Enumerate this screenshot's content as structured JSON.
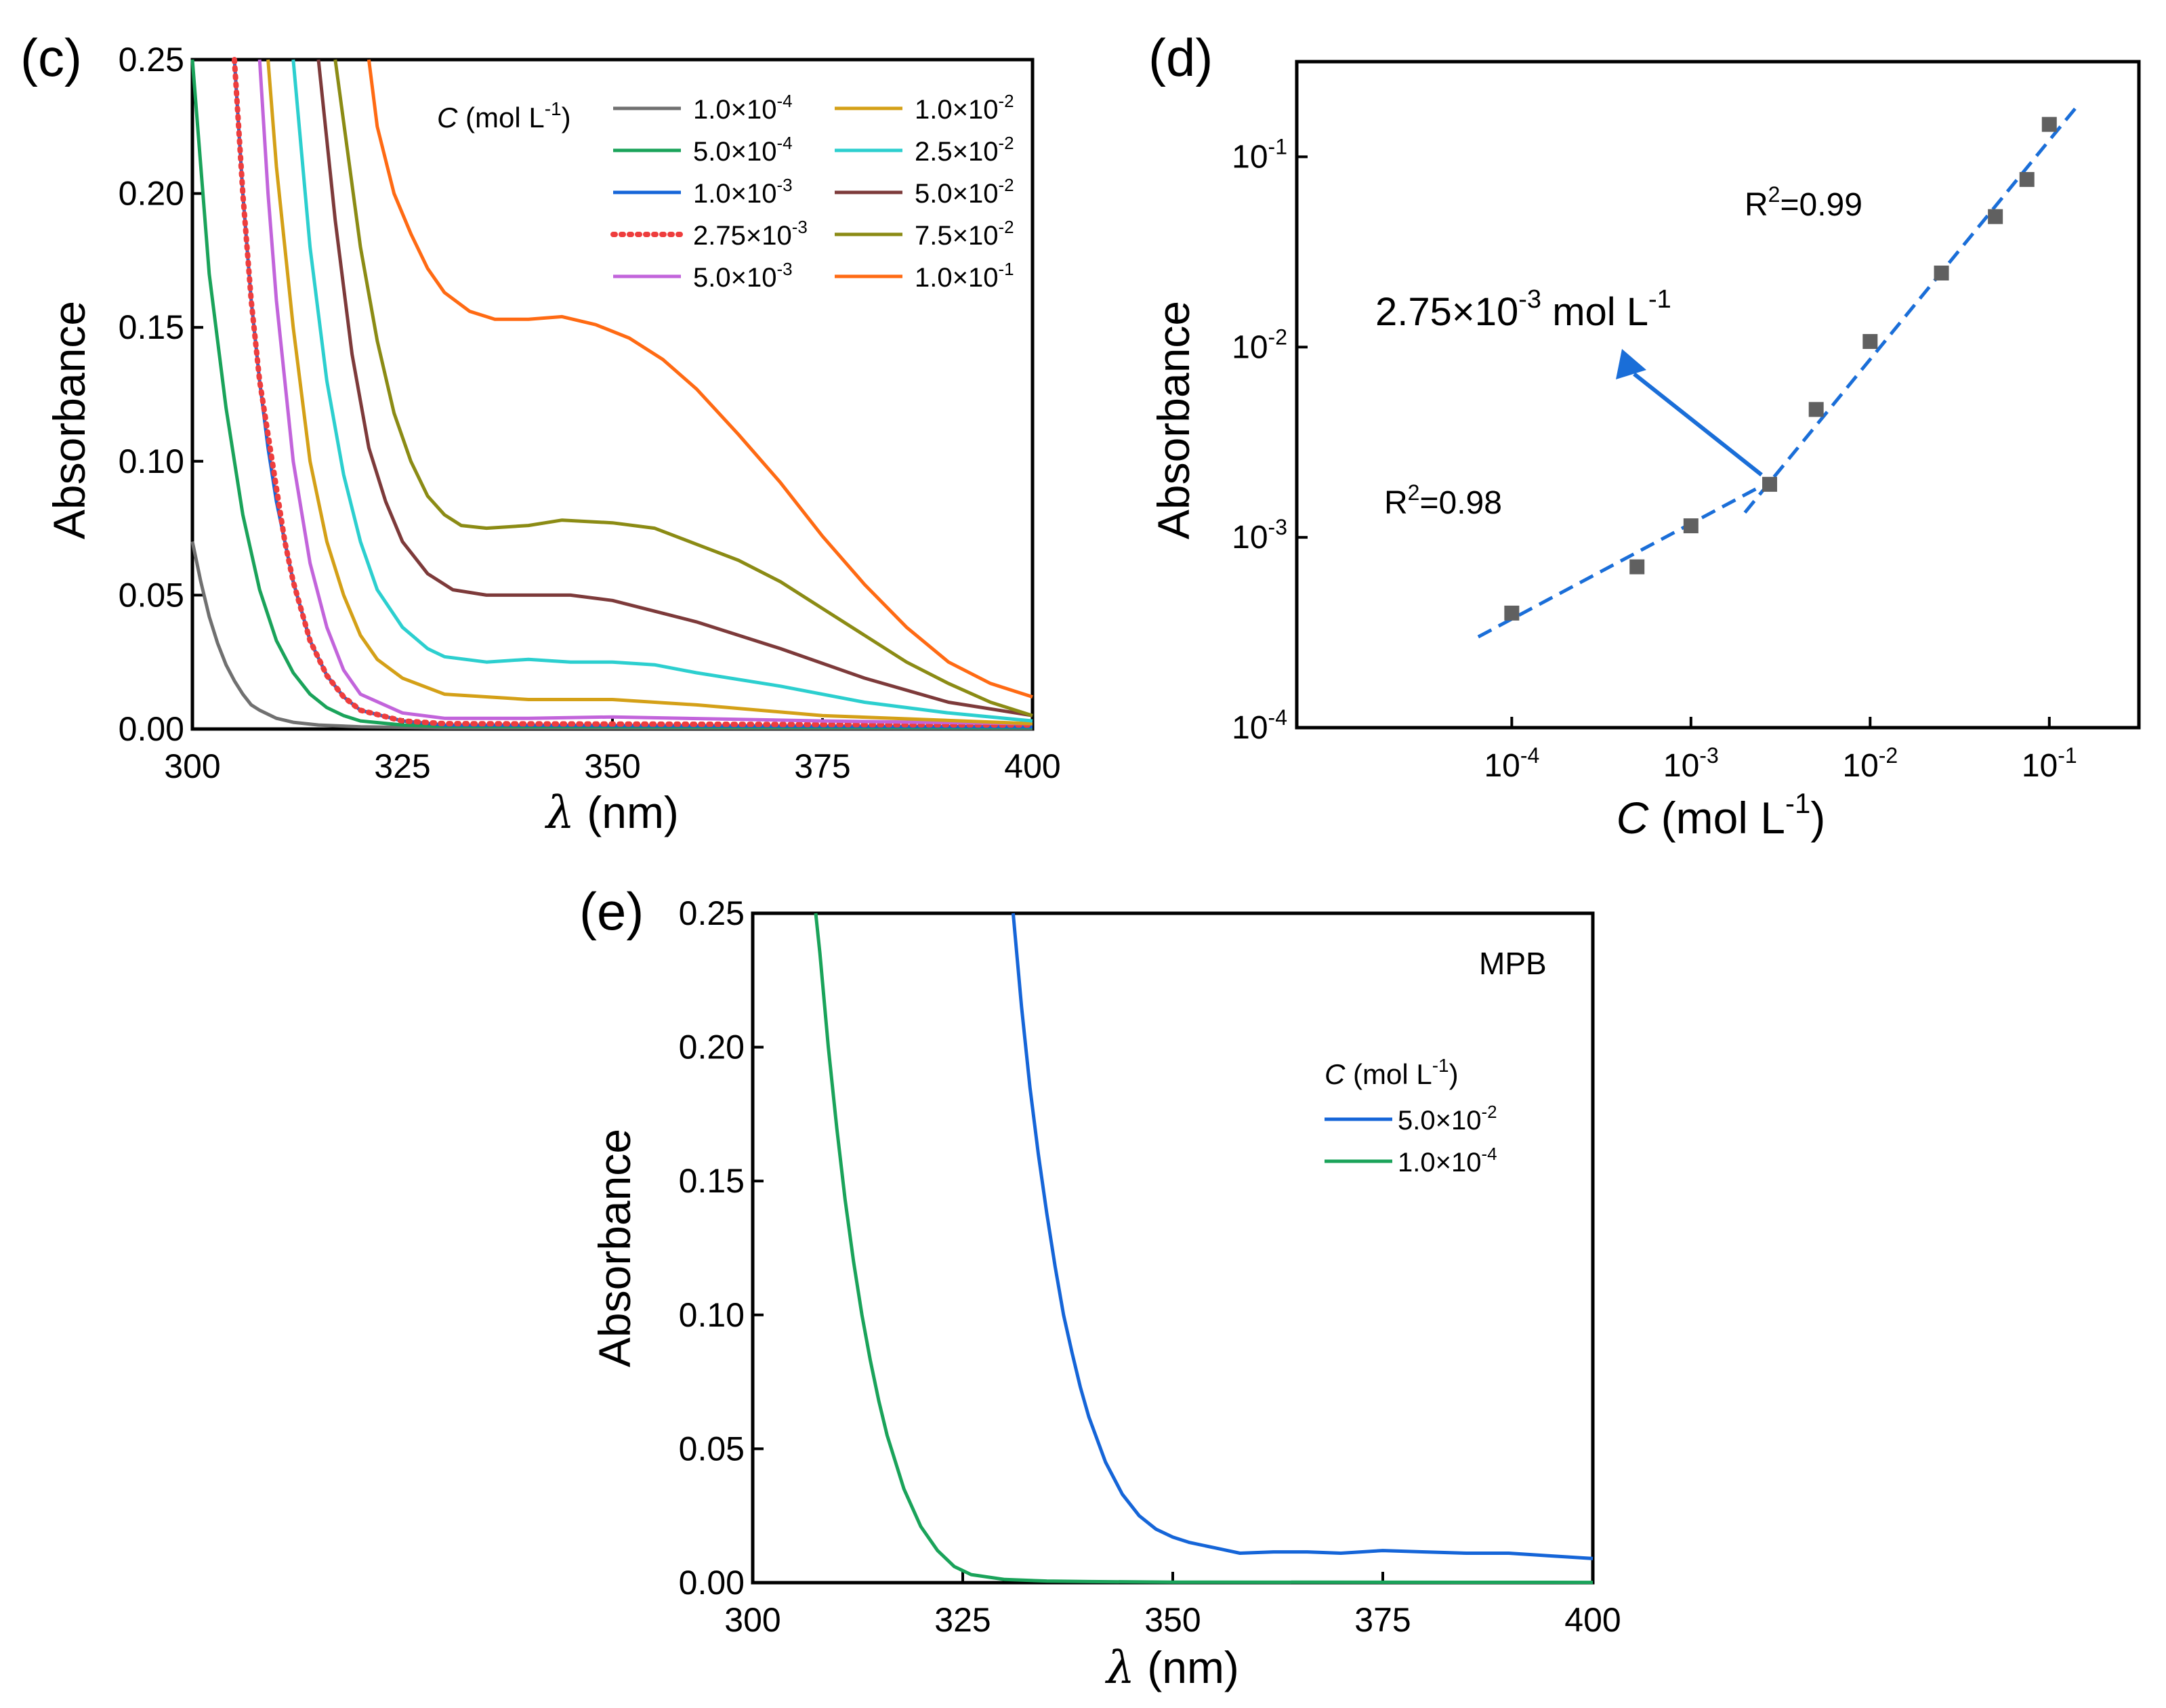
{
  "chart_data": [
    {
      "panel": "(c)",
      "type": "line",
      "xlabel_sym": "λ",
      "xlabel_rest": " (nm)",
      "ylabel": "Absorbance",
      "xlim": [
        300,
        400
      ],
      "ylim": [
        0,
        0.25
      ],
      "xticks": [
        "300",
        "325",
        "350",
        "375",
        "400"
      ],
      "yticks": [
        "0.00",
        "0.05",
        "0.10",
        "0.15",
        "0.20",
        "0.25"
      ],
      "legend_title_sym": "C",
      "legend_title_rest": " (mol L",
      "legend_title_exp": "-1",
      "legend_title_close": ")",
      "series": [
        {
          "name_base": "1.0×10",
          "name_exp": "-4",
          "color": "#707070",
          "dash": false,
          "x": [
            300,
            301,
            302,
            303,
            304,
            305,
            306,
            307,
            308,
            310,
            312,
            315,
            320,
            330,
            400
          ],
          "y": [
            0.07,
            0.055,
            0.042,
            0.032,
            0.024,
            0.018,
            0.013,
            0.009,
            0.007,
            0.004,
            0.0025,
            0.0015,
            0.0008,
            0.0004,
            0.0002
          ]
        },
        {
          "name_base": "5.0×10",
          "name_exp": "-4",
          "color": "#1aa35a",
          "dash": false,
          "x": [
            300,
            302,
            304,
            306,
            308,
            310,
            312,
            314,
            316,
            318,
            320,
            325,
            330,
            400
          ],
          "y": [
            0.25,
            0.17,
            0.12,
            0.08,
            0.052,
            0.033,
            0.021,
            0.013,
            0.008,
            0.005,
            0.003,
            0.0015,
            0.001,
            0.0005
          ]
        },
        {
          "name_base": "1.0×10",
          "name_exp": "-3",
          "color": "#1565d8",
          "dash": false,
          "x": [
            305,
            306,
            307,
            308,
            309,
            310,
            312,
            314,
            316,
            318,
            320,
            325,
            330,
            400
          ],
          "y": [
            0.25,
            0.2,
            0.16,
            0.13,
            0.105,
            0.085,
            0.055,
            0.033,
            0.02,
            0.012,
            0.007,
            0.003,
            0.0015,
            0.0008
          ]
        },
        {
          "name_base": "2.75×10",
          "name_exp": "-3",
          "color": "#ee3d3d",
          "dash": true,
          "x": [
            305,
            306,
            307,
            308,
            309,
            310,
            311,
            312,
            314,
            316,
            318,
            320,
            325,
            330,
            400
          ],
          "y": [
            0.25,
            0.2,
            0.16,
            0.13,
            0.11,
            0.09,
            0.07,
            0.055,
            0.033,
            0.02,
            0.012,
            0.007,
            0.003,
            0.002,
            0.0015
          ]
        },
        {
          "name_base": "5.0×10",
          "name_exp": "-3",
          "color": "#c264db",
          "dash": false,
          "x": [
            308,
            309,
            310,
            312,
            314,
            316,
            318,
            320,
            325,
            330,
            340,
            350,
            375,
            400
          ],
          "y": [
            0.25,
            0.2,
            0.16,
            0.1,
            0.062,
            0.038,
            0.022,
            0.013,
            0.006,
            0.004,
            0.004,
            0.0045,
            0.003,
            0.002
          ]
        },
        {
          "name_base": "1.0×10",
          "name_exp": "-2",
          "color": "#d4a017",
          "dash": false,
          "x": [
            309,
            310,
            312,
            314,
            316,
            318,
            320,
            322,
            325,
            330,
            340,
            350,
            360,
            375,
            400
          ],
          "y": [
            0.25,
            0.21,
            0.15,
            0.1,
            0.07,
            0.05,
            0.035,
            0.026,
            0.019,
            0.013,
            0.011,
            0.011,
            0.009,
            0.005,
            0.002
          ]
        },
        {
          "name_base": "2.5×10",
          "name_exp": "-2",
          "color": "#2ccfcf",
          "dash": false,
          "x": [
            312,
            314,
            316,
            318,
            320,
            322,
            325,
            328,
            330,
            335,
            340,
            345,
            350,
            355,
            360,
            370,
            380,
            390,
            400
          ],
          "y": [
            0.25,
            0.18,
            0.13,
            0.095,
            0.07,
            0.052,
            0.038,
            0.03,
            0.027,
            0.025,
            0.026,
            0.025,
            0.025,
            0.024,
            0.021,
            0.016,
            0.01,
            0.006,
            0.003
          ]
        },
        {
          "name_base": "5.0×10",
          "name_exp": "-2",
          "color": "#7d3a3a",
          "dash": false,
          "x": [
            315,
            317,
            319,
            321,
            323,
            325,
            328,
            331,
            335,
            340,
            345,
            350,
            355,
            360,
            370,
            380,
            390,
            400
          ],
          "y": [
            0.25,
            0.19,
            0.14,
            0.105,
            0.085,
            0.07,
            0.058,
            0.052,
            0.05,
            0.05,
            0.05,
            0.048,
            0.044,
            0.04,
            0.03,
            0.019,
            0.01,
            0.005
          ]
        },
        {
          "name_base": "7.5×10",
          "name_exp": "-2",
          "color": "#8b8b14",
          "dash": false,
          "x": [
            317,
            320,
            322,
            324,
            326,
            328,
            330,
            332,
            335,
            340,
            344,
            350,
            355,
            360,
            365,
            370,
            375,
            380,
            385,
            390,
            395,
            400
          ],
          "y": [
            0.25,
            0.18,
            0.145,
            0.118,
            0.1,
            0.087,
            0.08,
            0.076,
            0.075,
            0.076,
            0.078,
            0.077,
            0.075,
            0.069,
            0.063,
            0.055,
            0.045,
            0.035,
            0.025,
            0.017,
            0.01,
            0.005
          ]
        },
        {
          "name_base": "1.0×10",
          "name_exp": "-1",
          "color": "#ff6a13",
          "dash": false,
          "x": [
            321,
            322,
            324,
            326,
            328,
            330,
            333,
            336,
            340,
            344,
            348,
            352,
            356,
            360,
            365,
            370,
            375,
            380,
            385,
            390,
            395,
            400
          ],
          "y": [
            0.25,
            0.225,
            0.2,
            0.185,
            0.172,
            0.163,
            0.156,
            0.153,
            0.153,
            0.154,
            0.151,
            0.146,
            0.138,
            0.127,
            0.11,
            0.092,
            0.072,
            0.054,
            0.038,
            0.025,
            0.017,
            0.012
          ]
        }
      ]
    },
    {
      "panel": "(d)",
      "type": "scatter",
      "xscale": "log",
      "yscale": "log",
      "xlabel_sym": "C",
      "xlabel_rest": " (mol L",
      "xlabel_exp": "-1",
      "xlabel_close": ")",
      "ylabel": "Absorbance",
      "xlim_log10": [
        -5.2,
        -0.5
      ],
      "ylim_log10": [
        -4,
        -0.5
      ],
      "xticks": [
        {
          "base": "10",
          "exp": "-4",
          "v": -4
        },
        {
          "base": "10",
          "exp": "-3",
          "v": -3
        },
        {
          "base": "10",
          "exp": "-2",
          "v": -2
        },
        {
          "base": "10",
          "exp": "-1",
          "v": -1
        }
      ],
      "yticks": [
        {
          "base": "10",
          "exp": "-4",
          "v": -4
        },
        {
          "base": "10",
          "exp": "-3",
          "v": -3
        },
        {
          "base": "10",
          "exp": "-2",
          "v": -2
        },
        {
          "base": "10",
          "exp": "-1",
          "v": -1
        }
      ],
      "points": {
        "x": [
          0.0001,
          0.0005,
          0.001,
          0.00275,
          0.005,
          0.01,
          0.025,
          0.05,
          0.075,
          0.1
        ],
        "y": [
          0.0004,
          0.0007,
          0.00115,
          0.0019,
          0.0047,
          0.0107,
          0.0245,
          0.0485,
          0.076,
          0.148
        ]
      },
      "point_color": "#606060",
      "fits": [
        {
          "x": [
            6.5e-05,
            0.003
          ],
          "y": [
            0.0003,
            0.00205
          ],
          "color": "#1a6ed8"
        },
        {
          "x": [
            0.002,
            0.14
          ],
          "y": [
            0.00135,
            0.18
          ],
          "color": "#1a6ed8"
        }
      ],
      "annotations": {
        "r2_low_pre": "R",
        "r2_low_exp": "2",
        "r2_low_post": "=0.98",
        "r2_high_pre": "R",
        "r2_high_exp": "2",
        "r2_high_post": "=0.99",
        "cmc_pre": "2.75×10",
        "cmc_exp": "-3",
        "cmc_mid": " mol L",
        "cmc_exp2": "-1"
      },
      "arrow_color": "#1a6ed8"
    },
    {
      "panel": "(e)",
      "type": "line",
      "xlabel_sym": "λ",
      "xlabel_rest": " (nm)",
      "ylabel": "Absorbance",
      "xlim": [
        300,
        400
      ],
      "ylim": [
        0,
        0.25
      ],
      "xticks": [
        "300",
        "325",
        "350",
        "375",
        "400"
      ],
      "yticks": [
        "0.00",
        "0.05",
        "0.10",
        "0.15",
        "0.20",
        "0.25"
      ],
      "tag": "MPB",
      "legend_title_sym": "C",
      "legend_title_rest": " (mol L",
      "legend_title_exp": "-1",
      "legend_title_close": ")",
      "series": [
        {
          "name_base": "5.0×10",
          "name_exp": "-2",
          "color": "#1565d8",
          "x": [
            331,
            332,
            333,
            334,
            335,
            336,
            337,
            338,
            339,
            340,
            342,
            344,
            346,
            348,
            350,
            352,
            355,
            358,
            362,
            366,
            370,
            375,
            380,
            385,
            390,
            395,
            400
          ],
          "y": [
            0.25,
            0.215,
            0.185,
            0.16,
            0.138,
            0.118,
            0.1,
            0.086,
            0.073,
            0.062,
            0.045,
            0.033,
            0.025,
            0.02,
            0.017,
            0.015,
            0.013,
            0.011,
            0.0115,
            0.0115,
            0.011,
            0.012,
            0.0115,
            0.011,
            0.011,
            0.01,
            0.009
          ]
        },
        {
          "name_base": "1.0×10",
          "name_exp": "-4",
          "color": "#1aa35a",
          "x": [
            307.5,
            308,
            309,
            310,
            311,
            312,
            313,
            314,
            315,
            316,
            318,
            320,
            322,
            324,
            326,
            330,
            335,
            340,
            350,
            400
          ],
          "y": [
            0.25,
            0.235,
            0.2,
            0.17,
            0.143,
            0.12,
            0.1,
            0.083,
            0.068,
            0.055,
            0.035,
            0.021,
            0.012,
            0.006,
            0.003,
            0.0012,
            0.0006,
            0.0004,
            0.0002,
            0.0001
          ]
        }
      ]
    }
  ]
}
